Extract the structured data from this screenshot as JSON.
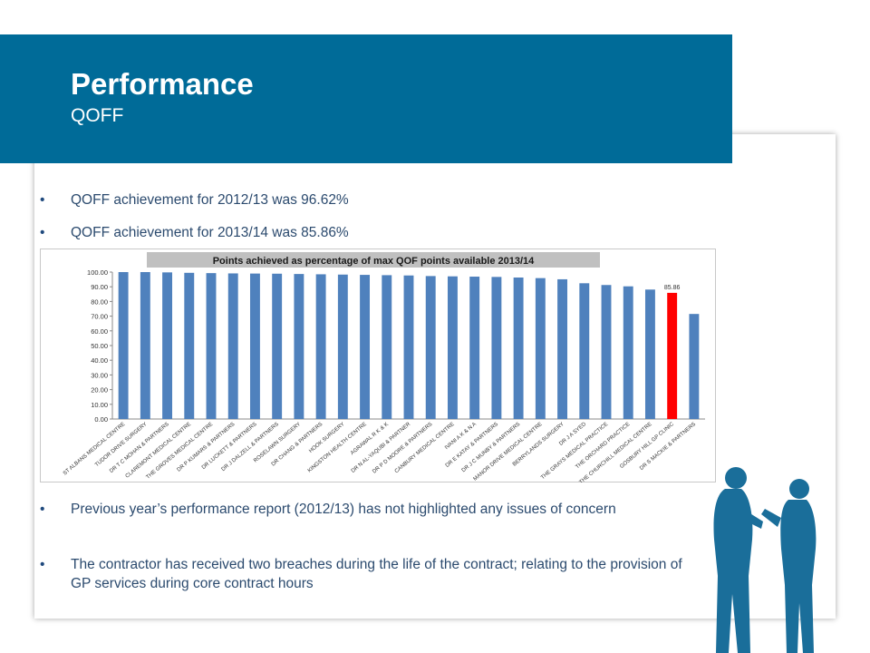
{
  "header": {
    "title": "Performance",
    "subtitle": "QOFF"
  },
  "bullets_top": [
    "QOFF achievement for 2012/13 was 96.62%",
    "QOFF achievement for 2013/14 was 85.86%"
  ],
  "bullets_bottom": [
    "Previous year’s performance report (2012/13) has not highlighted any issues of concern",
    "The contractor has received two breaches during the life of the contract; relating to the provision of GP services during core contract hours"
  ],
  "bullet_symbol": "•",
  "colors": {
    "header_bg": "#006b98",
    "bar": "#4f81bd",
    "highlight_bar": "#ff0000",
    "chart_title_bg": "#c0c0c0"
  },
  "chart_data": {
    "type": "bar",
    "title": "Points achieved as percentage of max QOF points available 2013/14",
    "categories": [
      "ST ALBANS MEDICAL CENTRE",
      "TUDOR DRIVE SURGERY",
      "DR T C MOHAN & PARTNERS",
      "CLAREMONT MEDICAL CENTRE",
      "THE GROVES MEDICAL CENTRE",
      "DR P KUMARS & PARTNERS",
      "DR LUCKETT & PARTNERS",
      "DR J DALZELL & PARTNERS",
      "ROSELAWN SURGERY",
      "DR CHANG & PARTNERS",
      "HOOK SURGERY",
      "KINGSTON HEALTH CENTRE",
      "AGRAWAL R K & K",
      "DR N AL-YAQUBI & PARTNER",
      "DR P D MOORE & PARTNERS",
      "CANBURY MEDICAL CENTRE",
      "IVANI A K & N A",
      "DR E KATAY & PARTNERS",
      "DR J C MUNBY & PARTNERS",
      "MANOR DRIVE MEDICAL CENTRE",
      "BERRYLANDS SURGERY",
      "DR J A SYED",
      "THE GRAYS MEDICAL PRACTICE",
      "THE ORCHARD PRACTICE",
      "THE CHURCHILL MEDICAL CENTRE",
      "GOSBURY HILL GP CLINIC",
      "DR S MACKIE & PARTNERS"
    ],
    "values": [
      100,
      100,
      99.8,
      99.5,
      99.3,
      99.1,
      99.0,
      98.9,
      98.7,
      98.5,
      98.3,
      98.1,
      97.9,
      97.7,
      97.3,
      97.1,
      96.9,
      96.7,
      96.3,
      95.9,
      95.1,
      92.4,
      91.2,
      90.3,
      88.1,
      85.86,
      71.5
    ],
    "highlight_index": 25,
    "data_labels": [
      {
        "category": "GOSBURY HILL GP CLINIC",
        "text": "85.86"
      }
    ],
    "ylim": [
      0,
      100
    ],
    "yticks": [
      "0.00",
      "10.00",
      "20.00",
      "30.00",
      "40.00",
      "50.00",
      "60.00",
      "70.00",
      "80.00",
      "90.00",
      "100.00"
    ],
    "grid": false,
    "legend": "none"
  }
}
